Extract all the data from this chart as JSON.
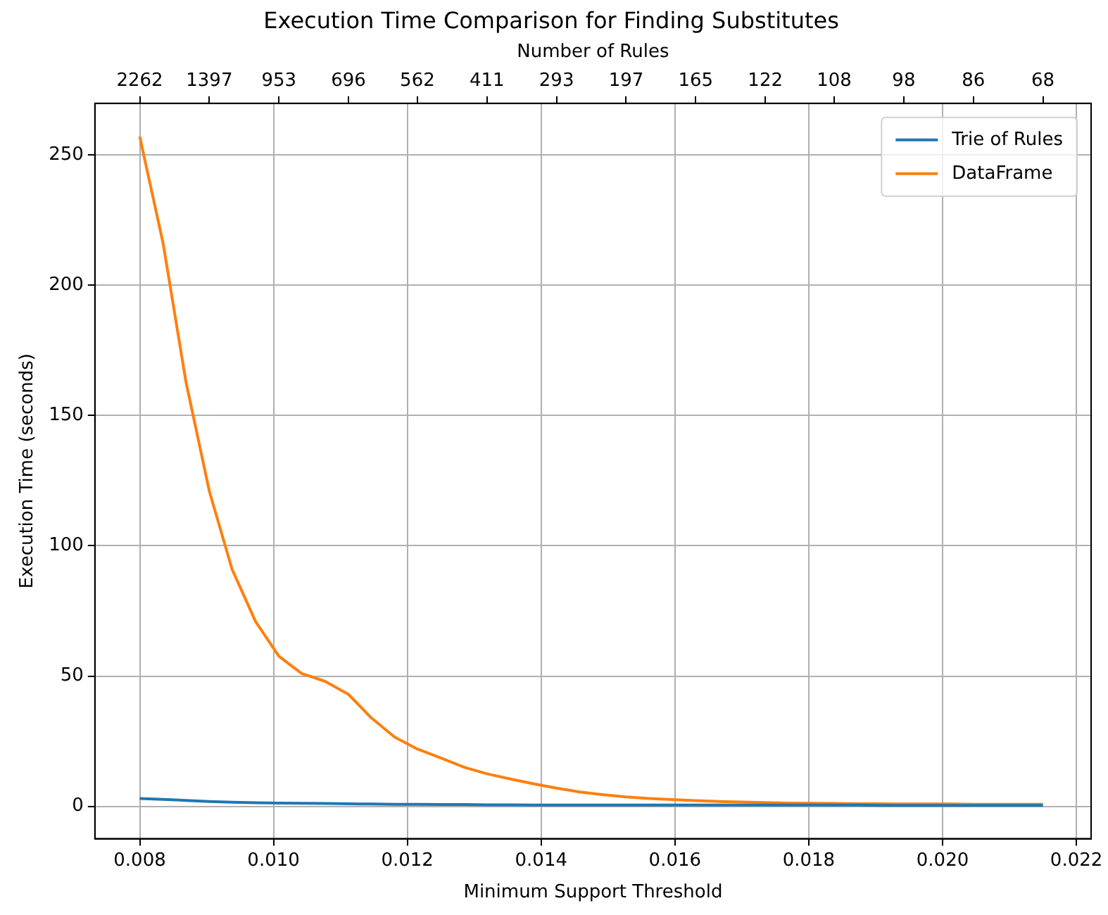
{
  "chart_data": {
    "type": "line",
    "title": "Execution Time Comparison for Finding Substitutes",
    "xlabel": "Minimum Support Threshold",
    "ylabel": "Execution Time (seconds)",
    "x2label": "Number of Rules",
    "x": [
      0.008,
      0.00835,
      0.00869,
      0.00904,
      0.00938,
      0.00973,
      0.01008,
      0.01042,
      0.01077,
      0.01112,
      0.01146,
      0.01181,
      0.01215,
      0.0125,
      0.01285,
      0.01319,
      0.01354,
      0.01388,
      0.01423,
      0.01458,
      0.01492,
      0.01527,
      0.01562,
      0.01596,
      0.01631,
      0.01665,
      0.017,
      0.01735,
      0.01769,
      0.01804,
      0.01838,
      0.01873,
      0.01908,
      0.01942,
      0.01977,
      0.02012,
      0.02046,
      0.02081,
      0.02115,
      0.0215
    ],
    "series": [
      {
        "name": "Trie of Rules",
        "color": "#1f77b4",
        "values": [
          3.0,
          2.7,
          2.3,
          1.9,
          1.6,
          1.4,
          1.3,
          1.2,
          1.1,
          1.0,
          0.9,
          0.8,
          0.8,
          0.7,
          0.7,
          0.6,
          0.6,
          0.5,
          0.5,
          0.5,
          0.5,
          0.5,
          0.5,
          0.5,
          0.5,
          0.5,
          0.5,
          0.5,
          0.5,
          0.5,
          0.5,
          0.5,
          0.4,
          0.4,
          0.4,
          0.4,
          0.4,
          0.4,
          0.4,
          0.4
        ]
      },
      {
        "name": "DataFrame",
        "color": "#ff7f0e",
        "values": [
          257,
          216,
          163,
          121,
          91,
          71,
          57.6,
          51,
          48,
          43,
          34,
          26.6,
          22,
          18.6,
          15,
          12.5,
          10.5,
          8.7,
          7,
          5.5,
          4.5,
          3.6,
          3,
          2.6,
          2.2,
          1.9,
          1.7,
          1.5,
          1.3,
          1.2,
          1.1,
          1.0,
          1.0,
          0.9,
          0.9,
          0.9,
          0.8,
          0.8,
          0.8,
          0.8
        ]
      }
    ],
    "xlim": [
      0.00733,
      0.02222
    ],
    "xticks": [
      {
        "value": 0.008,
        "label": "0.008"
      },
      {
        "value": 0.01,
        "label": "0.010"
      },
      {
        "value": 0.012,
        "label": "0.012"
      },
      {
        "value": 0.014,
        "label": "0.014"
      },
      {
        "value": 0.016,
        "label": "0.016"
      },
      {
        "value": 0.018,
        "label": "0.018"
      },
      {
        "value": 0.02,
        "label": "0.020"
      },
      {
        "value": 0.022,
        "label": "0.022"
      }
    ],
    "annotations": [
      {
        "text": "2262",
        "x": 0.008
      },
      {
        "text": "1397",
        "x": 0.00904
      },
      {
        "text": "953",
        "x": 0.01008
      },
      {
        "text": "696",
        "x": 0.01112
      },
      {
        "text": "562",
        "x": 0.01215
      },
      {
        "text": "411",
        "x": 0.01319
      },
      {
        "text": "293",
        "x": 0.01423
      },
      {
        "text": "197",
        "x": 0.01527
      },
      {
        "text": "165",
        "x": 0.01631
      },
      {
        "text": "122",
        "x": 0.01735
      },
      {
        "text": "108",
        "x": 0.01838
      },
      {
        "text": "98",
        "x": 0.01942
      },
      {
        "text": "86",
        "x": 0.02046
      },
      {
        "text": "68",
        "x": 0.0215
      }
    ],
    "ylim": [
      -12.4,
      269.8
    ],
    "yticks": [
      0,
      50,
      100,
      150,
      200,
      250
    ],
    "grid": true,
    "legend": "top right"
  }
}
